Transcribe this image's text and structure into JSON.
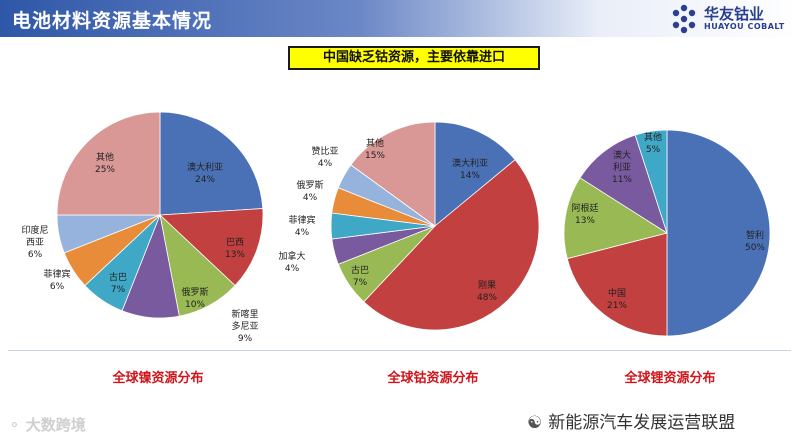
{
  "header": {
    "title": "电池材料资源基本情况"
  },
  "logo": {
    "name_cn": "华友钴业",
    "name_en": "HUAYOU COBALT"
  },
  "notice": "中国缺乏钴资源，主要依靠进口",
  "watermarks": {
    "left": "大数跨境",
    "right": "新能源汽车发展运营联盟"
  },
  "colors": {
    "blue": "#4a71b5",
    "red": "#c2403f",
    "green": "#98b954",
    "purple": "#7a5a9f",
    "teal": "#3fa8c7",
    "orange": "#e98c39",
    "lightblue": "#95b3dd",
    "pink": "#d99795",
    "title_red": "#d1141b"
  },
  "chart_data": [
    {
      "type": "pie",
      "title": "全球镍资源分布",
      "slices": [
        {
          "label": "澳大利亚",
          "value": 24,
          "pct": "24%",
          "color": "#4a71b5"
        },
        {
          "label": "巴西",
          "value": 13,
          "pct": "13%",
          "color": "#c2403f"
        },
        {
          "label": "俄罗斯",
          "value": 10,
          "pct": "10%",
          "color": "#98b954"
        },
        {
          "label": "新喀里多尼亚",
          "value": 9,
          "pct": "9%",
          "color": "#7a5a9f"
        },
        {
          "label": "古巴",
          "value": 7,
          "pct": "7%",
          "color": "#3fa8c7"
        },
        {
          "label": "菲律宾",
          "value": 6,
          "pct": "6%",
          "color": "#e98c39"
        },
        {
          "label": "印度尼西亚",
          "value": 6,
          "pct": "6%",
          "color": "#95b3dd"
        },
        {
          "label": "其他",
          "value": 25,
          "pct": "25%",
          "color": "#d99795"
        }
      ]
    },
    {
      "type": "pie",
      "title": "全球钴资源分布",
      "slices": [
        {
          "label": "澳大利亚",
          "value": 14,
          "pct": "14%",
          "color": "#4a71b5"
        },
        {
          "label": "刚果",
          "value": 48,
          "pct": "48%",
          "color": "#c2403f"
        },
        {
          "label": "古巴",
          "value": 7,
          "pct": "7%",
          "color": "#98b954"
        },
        {
          "label": "加拿大",
          "value": 4,
          "pct": "4%",
          "color": "#7a5a9f"
        },
        {
          "label": "菲律宾",
          "value": 4,
          "pct": "4%",
          "color": "#3fa8c7"
        },
        {
          "label": "俄罗斯",
          "value": 4,
          "pct": "4%",
          "color": "#e98c39"
        },
        {
          "label": "赞比亚",
          "value": 4,
          "pct": "4%",
          "color": "#95b3dd"
        },
        {
          "label": "其他",
          "value": 15,
          "pct": "15%",
          "color": "#d99795"
        }
      ]
    },
    {
      "type": "pie",
      "title": "全球锂资源分布",
      "slices": [
        {
          "label": "智利",
          "value": 50,
          "pct": "50%",
          "color": "#4a71b5"
        },
        {
          "label": "中国",
          "value": 21,
          "pct": "21%",
          "color": "#c2403f"
        },
        {
          "label": "阿根廷",
          "value": 13,
          "pct": "13%",
          "color": "#98b954"
        },
        {
          "label": "澳大利亚",
          "value": 11,
          "pct": "11%",
          "color": "#7a5a9f"
        },
        {
          "label": "其他",
          "value": 5,
          "pct": "5%",
          "color": "#3fa8c7"
        }
      ]
    }
  ]
}
